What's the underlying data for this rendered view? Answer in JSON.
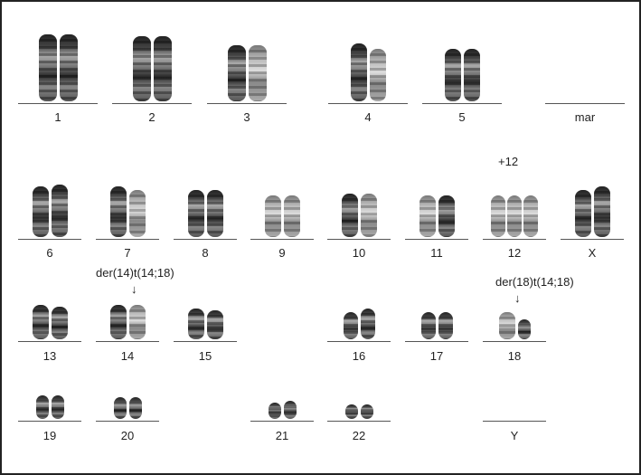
{
  "karyotype": {
    "labels": {
      "c1": "1",
      "c2": "2",
      "c3": "3",
      "c4": "4",
      "c5": "5",
      "mar": "mar",
      "c6": "6",
      "c7": "7",
      "c8": "8",
      "c9": "9",
      "c10": "10",
      "c11": "11",
      "c12": "12",
      "X": "X",
      "c13": "13",
      "c14": "14",
      "c15": "15",
      "c16": "16",
      "c17": "17",
      "c18": "18",
      "c19": "19",
      "c20": "20",
      "c21": "21",
      "c22": "22",
      "Y": "Y"
    },
    "annotations": {
      "plus12": "+12",
      "der14": "der(14)t(14;18)",
      "der18": "der(18)t(14;18)",
      "arrow": "↓"
    }
  }
}
